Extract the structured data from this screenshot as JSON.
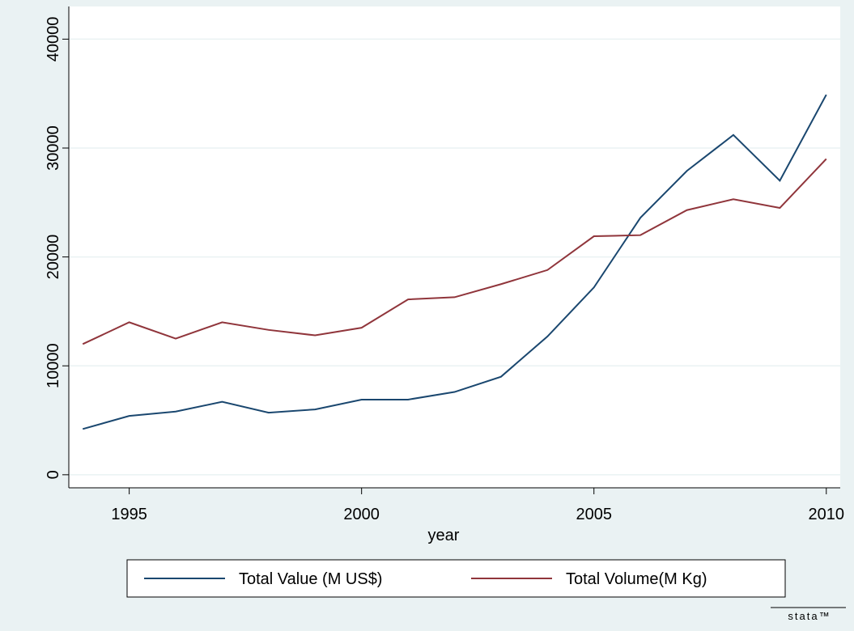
{
  "chart_data": {
    "type": "line",
    "x": [
      1994,
      1995,
      1996,
      1997,
      1998,
      1999,
      2000,
      2001,
      2002,
      2003,
      2004,
      2005,
      2006,
      2007,
      2008,
      2009,
      2010
    ],
    "series": [
      {
        "name": "Total Value (M US$)",
        "color": "#1a476f",
        "values": [
          4200,
          5400,
          5800,
          6700,
          5700,
          6000,
          6900,
          6900,
          7600,
          9000,
          12700,
          17200,
          23600,
          27900,
          31200,
          27000,
          34900
        ]
      },
      {
        "name": "Total Volume(M Kg)",
        "color": "#90353b",
        "values": [
          12000,
          14000,
          12500,
          14000,
          13300,
          12800,
          13500,
          16100,
          16300,
          17500,
          18800,
          21900,
          22000,
          24300,
          25300,
          24500,
          29000
        ]
      }
    ],
    "xlabel": "year",
    "xlim": [
      1993.7,
      2010.3
    ],
    "xticks": [
      1995,
      2000,
      2005,
      2010
    ],
    "ylim": [
      -1200,
      43000
    ],
    "yticks": [
      0,
      10000,
      20000,
      30000,
      40000
    ],
    "grid": true,
    "legend": "bottom",
    "brand": "stata™"
  }
}
